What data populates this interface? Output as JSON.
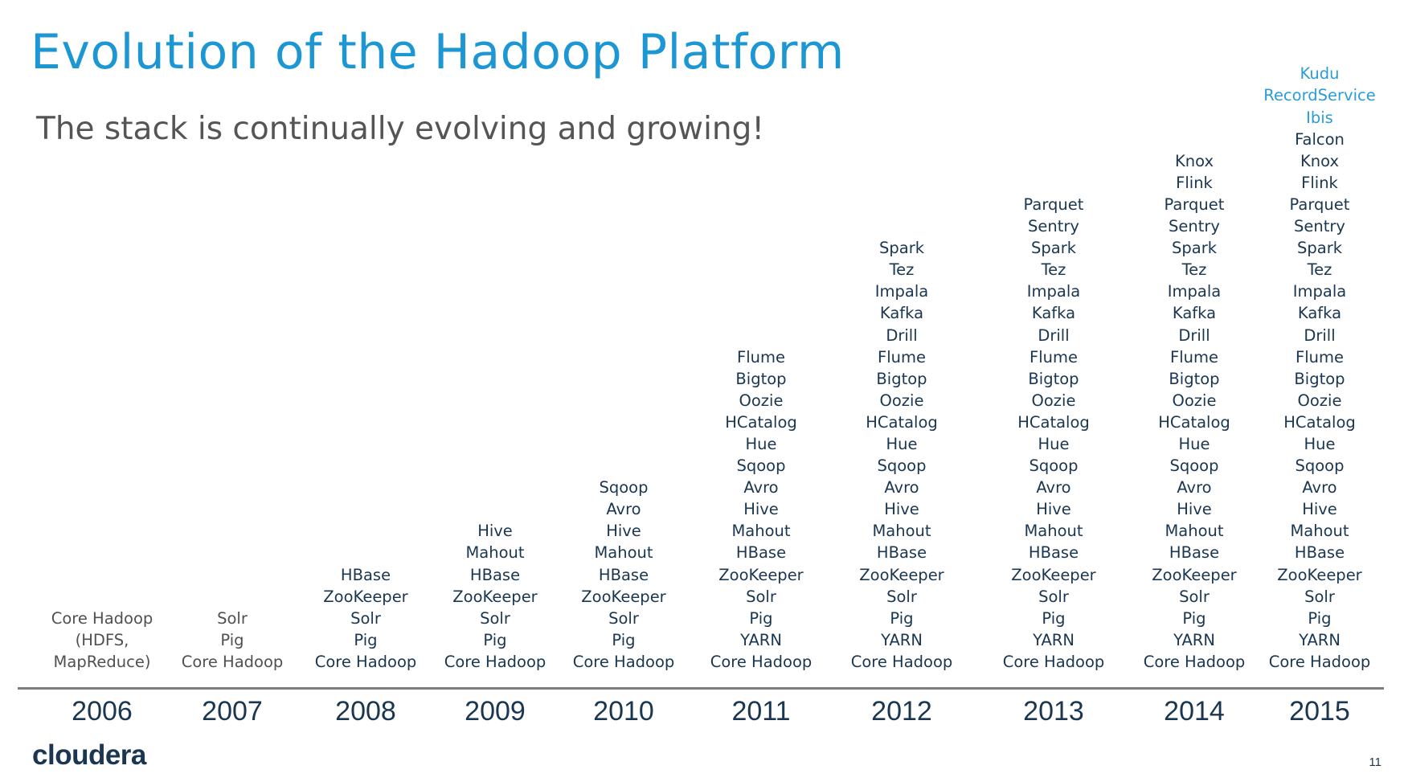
{
  "slide": {
    "title": "Evolution of the Hadoop Platform",
    "subtitle": "The stack is continually evolving and growing!",
    "logo": "cloudera",
    "page_number": "11",
    "colors": {
      "title": "#1d97d4",
      "text": "#1a3650",
      "new_item": "#2a9cd8",
      "axis": "#7d7d7d"
    }
  },
  "columns": [
    {
      "year": "2006",
      "items": [
        "Core Hadoop",
        "(HDFS,",
        "MapReduce)"
      ]
    },
    {
      "year": "2007",
      "items": [
        "Solr",
        "Pig",
        "Core Hadoop"
      ]
    },
    {
      "year": "2008",
      "items": [
        "HBase",
        "ZooKeeper",
        "Solr",
        "Pig",
        "Core Hadoop"
      ]
    },
    {
      "year": "2009",
      "items": [
        "Hive",
        "Mahout",
        "HBase",
        "ZooKeeper",
        "Solr",
        "Pig",
        "Core Hadoop"
      ]
    },
    {
      "year": "2010",
      "items": [
        "Sqoop",
        "Avro",
        "Hive",
        "Mahout",
        "HBase",
        "ZooKeeper",
        "Solr",
        "Pig",
        "Core Hadoop"
      ]
    },
    {
      "year": "2011",
      "items": [
        "Flume",
        "Bigtop",
        "Oozie",
        "HCatalog",
        "Hue",
        "Sqoop",
        "Avro",
        "Hive",
        "Mahout",
        "HBase",
        "ZooKeeper",
        "Solr",
        "Pig",
        "YARN",
        "Core Hadoop"
      ]
    },
    {
      "year": "2012",
      "items": [
        "Spark",
        "Tez",
        "Impala",
        "Kafka",
        "Drill",
        "Flume",
        "Bigtop",
        "Oozie",
        "HCatalog",
        "Hue",
        "Sqoop",
        "Avro",
        "Hive",
        "Mahout",
        "HBase",
        "ZooKeeper",
        "Solr",
        "Pig",
        "YARN",
        "Core Hadoop"
      ]
    },
    {
      "year": "2013",
      "items": [
        "Parquet",
        "Sentry",
        "Spark",
        "Tez",
        "Impala",
        "Kafka",
        "Drill",
        "Flume",
        "Bigtop",
        "Oozie",
        "HCatalog",
        "Hue",
        "Sqoop",
        "Avro",
        "Hive",
        "Mahout",
        "HBase",
        "ZooKeeper",
        "Solr",
        "Pig",
        "YARN",
        "Core Hadoop"
      ]
    },
    {
      "year": "2014",
      "items": [
        "Knox",
        "Flink",
        "Parquet",
        "Sentry",
        "Spark",
        "Tez",
        "Impala",
        "Kafka",
        "Drill",
        "Flume",
        "Bigtop",
        "Oozie",
        "HCatalog",
        "Hue",
        "Sqoop",
        "Avro",
        "Hive",
        "Mahout",
        "HBase",
        "ZooKeeper",
        "Solr",
        "Pig",
        "YARN",
        "Core Hadoop"
      ]
    },
    {
      "year": "2015",
      "new_items": [
        "Kudu",
        "RecordService",
        "Ibis"
      ],
      "items": [
        "Falcon",
        "Knox",
        "Flink",
        "Parquet",
        "Sentry",
        "Spark",
        "Tez",
        "Impala",
        "Kafka",
        "Drill",
        "Flume",
        "Bigtop",
        "Oozie",
        "HCatalog",
        "Hue",
        "Sqoop",
        "Avro",
        "Hive",
        "Mahout",
        "HBase",
        "ZooKeeper",
        "Solr",
        "Pig",
        "YARN",
        "Core Hadoop"
      ]
    }
  ]
}
